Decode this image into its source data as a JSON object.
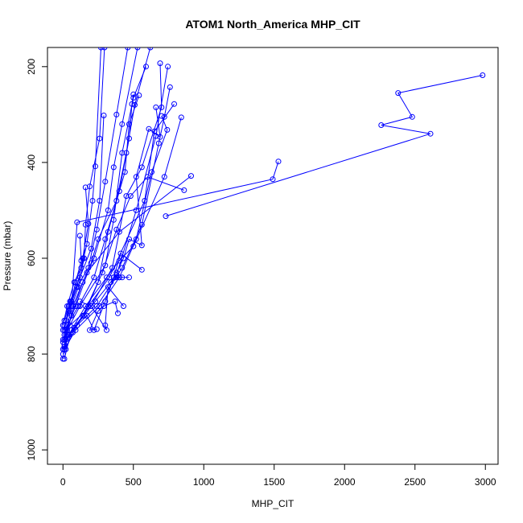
{
  "chart_data": {
    "type": "line",
    "title": "ATOM1 North_America MHP_CIT",
    "xlabel": "MHP_CIT",
    "ylabel": "Pressure (mbar)",
    "xlim": [
      -110,
      3090
    ],
    "ylim": [
      1030,
      160
    ],
    "y_reversed": true,
    "xticks": [
      0,
      500,
      1000,
      1500,
      2000,
      2500,
      3000
    ],
    "yticks": [
      200,
      400,
      600,
      800,
      1000
    ],
    "grid": false,
    "legend": "none",
    "series_color": "#0000ff",
    "marker": "open-circle",
    "series": [
      {
        "points": [
          [
            2980,
            218
          ],
          [
            2380,
            255
          ],
          [
            2480,
            305
          ],
          [
            2260,
            322
          ],
          [
            2610,
            340
          ],
          [
            730,
            512
          ]
        ]
      },
      {
        "points": [
          [
            1530,
            398
          ],
          [
            1490,
            435
          ],
          [
            100,
            525
          ],
          [
            60,
            700
          ],
          [
            20,
            760
          ],
          [
            10,
            790
          ]
        ]
      },
      {
        "points": [
          [
            910,
            428
          ],
          [
            400,
            545
          ],
          [
            170,
            630
          ],
          [
            70,
            700
          ],
          [
            30,
            760
          ],
          [
            10,
            785
          ]
        ]
      },
      {
        "points": [
          [
            840,
            306
          ],
          [
            720,
            430
          ],
          [
            500,
            575
          ],
          [
            400,
            605
          ],
          [
            310,
            640
          ],
          [
            160,
            700
          ],
          [
            60,
            750
          ],
          [
            10,
            810
          ]
        ]
      },
      {
        "points": [
          [
            790,
            278
          ],
          [
            650,
            335
          ],
          [
            580,
            480
          ],
          [
            330,
            640
          ],
          [
            180,
            700
          ],
          [
            70,
            755
          ],
          [
            20,
            790
          ]
        ]
      },
      {
        "points": [
          [
            760,
            243
          ],
          [
            720,
            305
          ],
          [
            680,
            360
          ],
          [
            560,
            530
          ],
          [
            420,
            620
          ],
          [
            240,
            700
          ],
          [
            100,
            740
          ],
          [
            20,
            770
          ]
        ]
      },
      {
        "points": [
          [
            745,
            200
          ],
          [
            660,
            345
          ],
          [
            520,
            500
          ],
          [
            380,
            635
          ],
          [
            230,
            690
          ],
          [
            80,
            745
          ],
          [
            10,
            780
          ]
        ]
      },
      {
        "points": [
          [
            690,
            193
          ],
          [
            700,
            285
          ],
          [
            560,
            410
          ],
          [
            450,
            470
          ],
          [
            350,
            620
          ],
          [
            200,
            700
          ],
          [
            50,
            740
          ],
          [
            10,
            760
          ]
        ]
      },
      {
        "points": [
          [
            590,
            200
          ],
          [
            500,
            265
          ],
          [
            420,
            380
          ],
          [
            360,
            520
          ],
          [
            300,
            615
          ],
          [
            120,
            700
          ],
          [
            30,
            750
          ],
          [
            0,
            770
          ]
        ]
      },
      {
        "points": [
          [
            700,
            303
          ],
          [
            740,
            332
          ],
          [
            630,
            420
          ],
          [
            520,
            560
          ],
          [
            400,
            640
          ],
          [
            260,
            700
          ],
          [
            90,
            750
          ],
          [
            10,
            790
          ]
        ]
      },
      {
        "points": [
          [
            860,
            458
          ],
          [
            600,
            430
          ],
          [
            480,
            470
          ],
          [
            380,
            540
          ],
          [
            280,
            630
          ],
          [
            140,
            720
          ],
          [
            40,
            760
          ],
          [
            0,
            790
          ]
        ]
      },
      {
        "points": [
          [
            540,
            260
          ],
          [
            470,
            320
          ],
          [
            440,
            420
          ],
          [
            300,
            560
          ],
          [
            220,
            640
          ],
          [
            110,
            700
          ],
          [
            30,
            740
          ],
          [
            0,
            775
          ]
        ]
      },
      {
        "points": [
          [
            500,
            258
          ],
          [
            490,
            278
          ],
          [
            470,
            350
          ],
          [
            400,
            460
          ],
          [
            320,
            545
          ],
          [
            250,
            650
          ],
          [
            150,
            720
          ],
          [
            40,
            760
          ],
          [
            0,
            800
          ]
        ]
      },
      {
        "points": [
          [
            620,
            160
          ],
          [
            510,
            280
          ],
          [
            450,
            380
          ],
          [
            380,
            480
          ],
          [
            250,
            560
          ],
          [
            200,
            610
          ],
          [
            90,
            700
          ],
          [
            20,
            750
          ],
          [
            0,
            810
          ]
        ]
      },
      {
        "points": [
          [
            530,
            160
          ],
          [
            420,
            320
          ],
          [
            360,
            410
          ],
          [
            320,
            500
          ],
          [
            220,
            600
          ],
          [
            140,
            650
          ],
          [
            60,
            720
          ],
          [
            10,
            770
          ]
        ]
      },
      {
        "points": [
          [
            460,
            160
          ],
          [
            380,
            300
          ],
          [
            300,
            440
          ],
          [
            240,
            540
          ],
          [
            180,
            620
          ],
          [
            100,
            660
          ],
          [
            40,
            710
          ],
          [
            0,
            750
          ]
        ]
      },
      {
        "points": [
          [
            295,
            160
          ],
          [
            260,
            350
          ],
          [
            190,
            450
          ],
          [
            160,
            530
          ],
          [
            150,
            600
          ],
          [
            110,
            660
          ],
          [
            60,
            700
          ],
          [
            10,
            740
          ]
        ]
      },
      {
        "points": [
          [
            270,
            160
          ],
          [
            230,
            408
          ],
          [
            210,
            480
          ],
          [
            170,
            570
          ],
          [
            130,
            620
          ],
          [
            80,
            650
          ],
          [
            30,
            700
          ],
          [
            0,
            740
          ]
        ]
      },
      {
        "points": [
          [
            290,
            302
          ],
          [
            260,
            480
          ],
          [
            200,
            580
          ],
          [
            120,
            640
          ],
          [
            50,
            690
          ],
          [
            10,
            730
          ]
        ]
      },
      {
        "points": [
          [
            160,
            452
          ],
          [
            180,
            528
          ],
          [
            140,
            600
          ],
          [
            100,
            660
          ],
          [
            40,
            700
          ],
          [
            10,
            750
          ]
        ]
      },
      {
        "points": [
          [
            120,
            553
          ],
          [
            130,
            605
          ],
          [
            90,
            650
          ],
          [
            60,
            690
          ],
          [
            20,
            730
          ]
        ]
      },
      {
        "points": [
          [
            560,
            624
          ],
          [
            410,
            590
          ],
          [
            360,
            640
          ],
          [
            300,
            690
          ],
          [
            220,
            750
          ],
          [
            170,
            720
          ]
        ]
      },
      {
        "points": [
          [
            430,
            700
          ],
          [
            320,
            660
          ],
          [
            300,
            740
          ],
          [
            310,
            750
          ],
          [
            200,
            700
          ],
          [
            120,
            690
          ]
        ]
      },
      {
        "points": [
          [
            390,
            715
          ],
          [
            370,
            690
          ],
          [
            290,
            700
          ],
          [
            250,
            710
          ],
          [
            190,
            750
          ],
          [
            240,
            748
          ]
        ]
      },
      {
        "points": [
          [
            470,
            640
          ],
          [
            420,
            640
          ],
          [
            380,
            640
          ],
          [
            360,
            640
          ],
          [
            340,
            650
          ],
          [
            400,
            640
          ]
        ]
      },
      {
        "points": [
          [
            660,
            285
          ],
          [
            690,
            347
          ],
          [
            610,
            330
          ],
          [
            520,
            430
          ],
          [
            560,
            573
          ],
          [
            470,
            560
          ],
          [
            430,
            600
          ],
          [
            380,
            630
          ]
        ]
      }
    ]
  }
}
